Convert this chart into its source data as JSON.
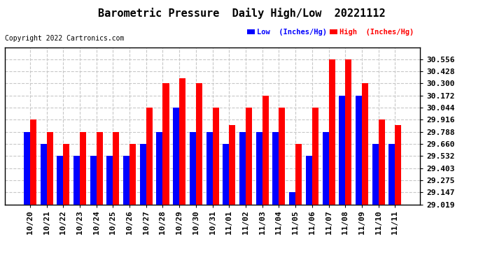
{
  "title": "Barometric Pressure  Daily High/Low  20221112",
  "copyright": "Copyright 2022 Cartronics.com",
  "legend_low": "Low  (Inches/Hg)",
  "legend_high": "High  (Inches/Hg)",
  "dates": [
    "10/20",
    "10/21",
    "10/22",
    "10/23",
    "10/24",
    "10/25",
    "10/26",
    "10/27",
    "10/28",
    "10/29",
    "10/30",
    "10/31",
    "11/01",
    "11/02",
    "11/03",
    "11/04",
    "11/05",
    "11/06",
    "11/07",
    "11/08",
    "11/09",
    "11/10",
    "11/11"
  ],
  "high_values": [
    29.916,
    29.788,
    29.66,
    29.788,
    29.788,
    29.788,
    29.66,
    30.044,
    30.3,
    30.356,
    30.3,
    30.044,
    29.856,
    30.044,
    30.172,
    30.044,
    29.66,
    30.044,
    30.556,
    30.556,
    30.3,
    29.916,
    29.856
  ],
  "low_values": [
    29.788,
    29.66,
    29.532,
    29.532,
    29.532,
    29.532,
    29.532,
    29.66,
    29.788,
    30.044,
    29.788,
    29.788,
    29.66,
    29.788,
    29.788,
    29.788,
    29.147,
    29.532,
    29.788,
    30.172,
    30.172,
    29.66,
    29.66
  ],
  "high_color": "#ff0000",
  "low_color": "#0000ff",
  "ylim_min": 29.019,
  "ylim_max": 30.684,
  "yticks": [
    29.019,
    29.147,
    29.275,
    29.403,
    29.532,
    29.66,
    29.788,
    29.916,
    30.044,
    30.172,
    30.3,
    30.428,
    30.556
  ],
  "background_color": "#ffffff",
  "grid_color": "#c8c8c8",
  "title_fontsize": 11,
  "tick_fontsize": 8,
  "bar_width": 0.38
}
